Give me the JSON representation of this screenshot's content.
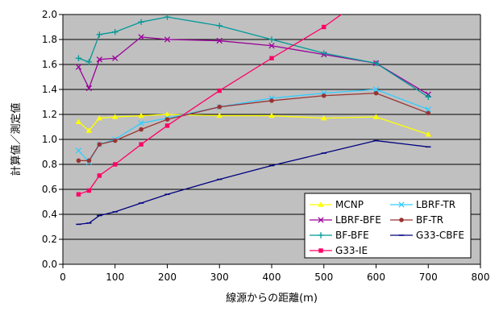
{
  "chart_data": {
    "type": "line",
    "title": "",
    "xlabel": "線源からの距離(m)",
    "ylabel": "計算値／測定値",
    "xlim": [
      0,
      800
    ],
    "ylim": [
      0.0,
      2.0
    ],
    "xticks": [
      "0",
      "100",
      "200",
      "300",
      "400",
      "500",
      "600",
      "700",
      "800"
    ],
    "yticks": [
      "0.0",
      "0.2",
      "0.4",
      "0.6",
      "0.8",
      "1.0",
      "1.2",
      "1.4",
      "1.6",
      "1.8",
      "2.0"
    ],
    "grid": "horizontal",
    "legend_position": "bottom-right",
    "plot_background": "#c0c0c0",
    "series": [
      {
        "name": "MCNP",
        "color": "#ffff00",
        "marker": "triangle",
        "x": [
          30,
          50,
          70,
          100,
          150,
          200,
          300,
          400,
          500,
          600,
          700
        ],
        "y": [
          1.14,
          1.07,
          1.17,
          1.18,
          1.19,
          1.2,
          1.19,
          1.19,
          1.17,
          1.18,
          1.04
        ]
      },
      {
        "name": "LBRF-TR",
        "color": "#33ccff",
        "marker": "x",
        "x": [
          30,
          50,
          70,
          100,
          150,
          200,
          300,
          400,
          500,
          600,
          700
        ],
        "y": [
          0.91,
          0.82,
          0.96,
          1.0,
          1.13,
          1.17,
          1.26,
          1.33,
          1.37,
          1.4,
          1.24
        ]
      },
      {
        "name": "LBRF-BFE",
        "color": "#990099",
        "marker": "x",
        "x": [
          30,
          50,
          70,
          100,
          150,
          200,
          300,
          400,
          500,
          600,
          700
        ],
        "y": [
          1.58,
          1.41,
          1.64,
          1.65,
          1.82,
          1.8,
          1.79,
          1.75,
          1.68,
          1.61,
          1.36
        ]
      },
      {
        "name": "BF-TR",
        "color": "#993333",
        "marker": "circle",
        "x": [
          30,
          50,
          70,
          100,
          150,
          200,
          300,
          400,
          500,
          600,
          700
        ],
        "y": [
          0.83,
          0.83,
          0.96,
          0.99,
          1.08,
          1.16,
          1.26,
          1.31,
          1.35,
          1.37,
          1.21
        ]
      },
      {
        "name": "BF-BFE",
        "color": "#009999",
        "marker": "plus",
        "x": [
          30,
          50,
          70,
          100,
          150,
          200,
          300,
          400,
          500,
          600,
          700
        ],
        "y": [
          1.65,
          1.62,
          1.84,
          1.86,
          1.94,
          1.98,
          1.91,
          1.8,
          1.69,
          1.61,
          1.34
        ]
      },
      {
        "name": "G33-CBFE",
        "color": "#000080",
        "marker": "dash",
        "x": [
          30,
          50,
          70,
          100,
          150,
          200,
          300,
          400,
          500,
          600,
          700
        ],
        "y": [
          0.32,
          0.33,
          0.39,
          0.42,
          0.49,
          0.56,
          0.68,
          0.79,
          0.89,
          0.99,
          0.94
        ]
      },
      {
        "name": "G33-IE",
        "color": "#ff0066",
        "marker": "square",
        "x": [
          30,
          50,
          70,
          100,
          150,
          200,
          300,
          400,
          500,
          560
        ],
        "y": [
          0.56,
          0.59,
          0.71,
          0.8,
          0.96,
          1.11,
          1.39,
          1.65,
          1.9,
          2.08
        ]
      }
    ]
  }
}
